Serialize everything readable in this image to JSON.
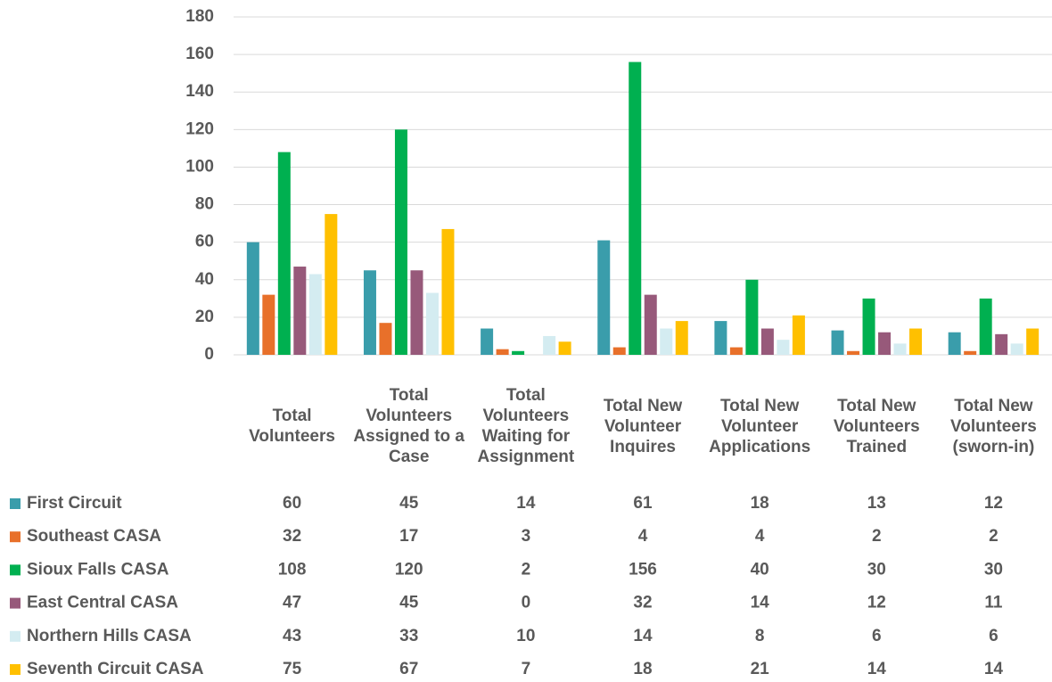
{
  "chart_data": {
    "type": "bar",
    "categories": [
      "Total Volunteers",
      "Total Volunteers Assigned to a Case",
      "Total Volunteers Waiting for Assignment",
      "Total New Volunteer Inquires",
      "Total New Volunteer Applications",
      "Total New Volunteers Trained",
      "Total New Volunteers (sworn-in)"
    ],
    "series": [
      {
        "name": "First Circuit",
        "color": "#3a9dab",
        "values": [
          60,
          45,
          14,
          61,
          18,
          13,
          12
        ]
      },
      {
        "name": "Southeast CASA",
        "color": "#e8702a",
        "values": [
          32,
          17,
          3,
          4,
          4,
          2,
          2
        ]
      },
      {
        "name": "Sioux Falls CASA",
        "color": "#00b050",
        "values": [
          108,
          120,
          2,
          156,
          40,
          30,
          30
        ]
      },
      {
        "name": "East Central CASA",
        "color": "#97597a",
        "values": [
          47,
          45,
          0,
          32,
          14,
          12,
          11
        ]
      },
      {
        "name": "Northern Hills CASA",
        "color": "#d4ecf1",
        "values": [
          43,
          33,
          10,
          14,
          8,
          6,
          6
        ]
      },
      {
        "name": "Seventh Circuit CASA",
        "color": "#ffc000",
        "values": [
          75,
          67,
          7,
          18,
          21,
          14,
          14
        ]
      }
    ],
    "ylim": [
      0,
      180
    ],
    "yticks": [
      0,
      20,
      40,
      60,
      80,
      100,
      120,
      140,
      160,
      180
    ],
    "grid": true,
    "data_table": true
  }
}
